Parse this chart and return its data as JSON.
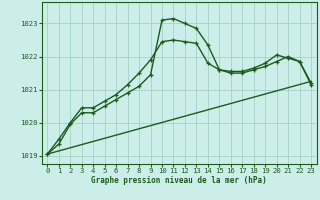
{
  "title": "Graphe pression niveau de la mer (hPa)",
  "background_color": "#cceee8",
  "grid_color": "#aad4cc",
  "line_color": "#1a5c1a",
  "xlim": [
    -0.5,
    23.5
  ],
  "ylim": [
    1018.75,
    1023.65
  ],
  "yticks": [
    1019,
    1020,
    1021,
    1022,
    1023
  ],
  "xticks": [
    0,
    1,
    2,
    3,
    4,
    5,
    6,
    7,
    8,
    9,
    10,
    11,
    12,
    13,
    14,
    15,
    16,
    17,
    18,
    19,
    20,
    21,
    22,
    23
  ],
  "series1_x": [
    0,
    1,
    2,
    3,
    4,
    5,
    6,
    7,
    8,
    9,
    10,
    11,
    12,
    13,
    14,
    15,
    16,
    17,
    18,
    19,
    20,
    21,
    22,
    23
  ],
  "series1_y": [
    1019.05,
    1019.35,
    1019.95,
    1020.3,
    1020.3,
    1020.5,
    1020.7,
    1020.9,
    1021.1,
    1021.45,
    1023.1,
    1023.15,
    1023.0,
    1022.85,
    1022.35,
    1021.6,
    1021.55,
    1021.55,
    1021.65,
    1021.8,
    1022.05,
    1021.95,
    1021.85,
    1021.2
  ],
  "series2_x": [
    0,
    1,
    2,
    3,
    4,
    5,
    6,
    7,
    8,
    9,
    10,
    11,
    12,
    13,
    14,
    15,
    16,
    17,
    18,
    19,
    20,
    21,
    22,
    23
  ],
  "series2_y": [
    1019.05,
    1019.5,
    1020.0,
    1020.45,
    1020.45,
    1020.65,
    1020.85,
    1021.15,
    1021.5,
    1021.9,
    1022.45,
    1022.5,
    1022.45,
    1022.4,
    1021.8,
    1021.6,
    1021.5,
    1021.5,
    1021.6,
    1021.7,
    1021.85,
    1022.0,
    1021.85,
    1021.15
  ],
  "series3_x": [
    0,
    23
  ],
  "series3_y": [
    1019.05,
    1021.25
  ]
}
